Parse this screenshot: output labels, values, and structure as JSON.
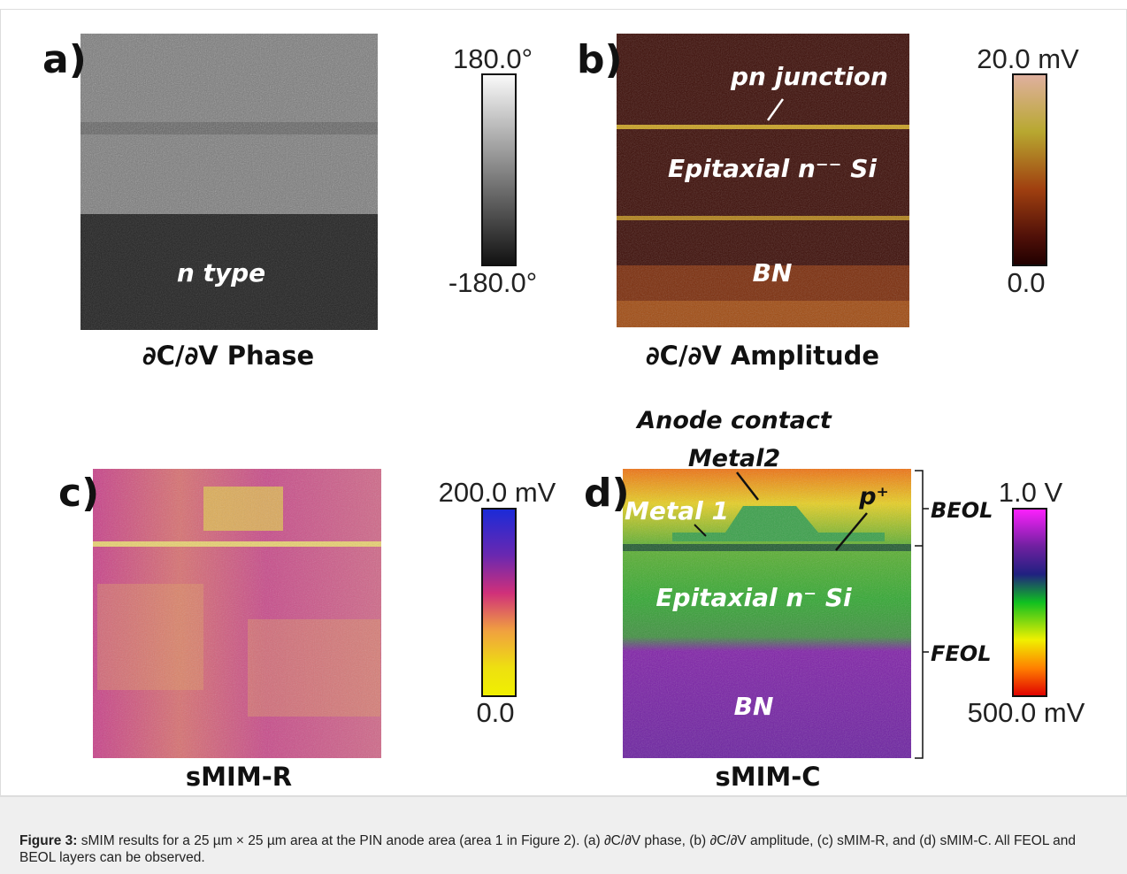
{
  "panels": [
    {
      "label": "a)",
      "caption": "∂C/∂V Phase",
      "scale_max": "180.0°",
      "scale_min": "-180.0°",
      "annotations": [
        "n type"
      ]
    },
    {
      "label": "b)",
      "caption": "∂C/∂V Amplitude",
      "scale_max": "20.0 mV",
      "scale_min": "0.0",
      "annotations": [
        "pn junction",
        "Epitaxial n⁻⁻ Si",
        "BN"
      ]
    },
    {
      "label": "c)",
      "caption": "sMIM-R",
      "scale_max": "200.0 mV",
      "scale_min": "0.0"
    },
    {
      "label": "d)",
      "caption": "sMIM-C",
      "scale_max": "1.0 V",
      "scale_min": "500.0 mV",
      "annotations": [
        "Anode contact",
        "Metal2",
        "Metal 1",
        "p⁺",
        "Epitaxial n⁻ Si",
        "BN",
        "BEOL",
        "FEOL"
      ]
    }
  ],
  "figure_caption": {
    "label": "Figure 3:",
    "text": "sMIM results for a 25 µm × 25 µm area at the PIN anode area (area 1 in Figure 2). (a) ∂C/∂V phase, (b) ∂C/∂V amplitude, (c) sMIM-R, and (d) sMIM-C. All FEOL and BEOL layers can be observed."
  }
}
